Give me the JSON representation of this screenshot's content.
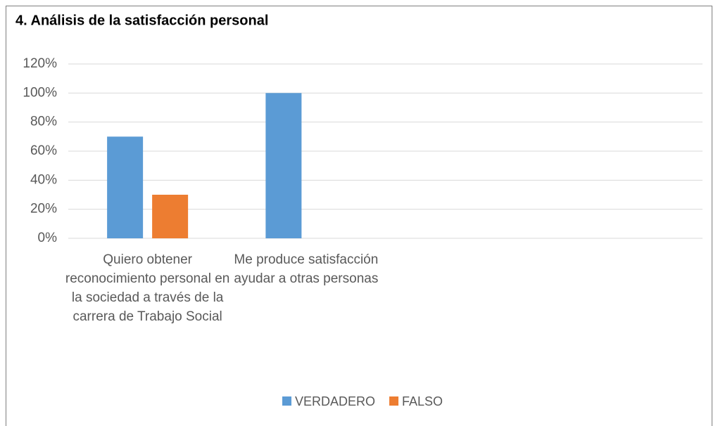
{
  "chart_data": {
    "type": "bar",
    "title": "4. Análisis de la satisfacción personal",
    "categories": [
      "Quiero obtener reconocimiento personal en la sociedad a través de la carrera de Trabajo Social",
      "Me produce satisfacción ayudar a otras personas",
      null,
      null
    ],
    "series": [
      {
        "name": "VERDADERO",
        "color": "#5b9bd5",
        "values": [
          70,
          100,
          null,
          null
        ]
      },
      {
        "name": "FALSO",
        "color": "#ed7d31",
        "values": [
          30,
          0,
          null,
          null
        ]
      }
    ],
    "ylim": [
      0,
      120
    ],
    "yticks": [
      {
        "value": 0,
        "label": "0%"
      },
      {
        "value": 20,
        "label": "20%"
      },
      {
        "value": 40,
        "label": "40%"
      },
      {
        "value": 60,
        "label": "60%"
      },
      {
        "value": 80,
        "label": "80%"
      },
      {
        "value": 100,
        "label": "100%"
      },
      {
        "value": 120,
        "label": "120%"
      }
    ],
    "grid": true,
    "legend": "bottom"
  }
}
